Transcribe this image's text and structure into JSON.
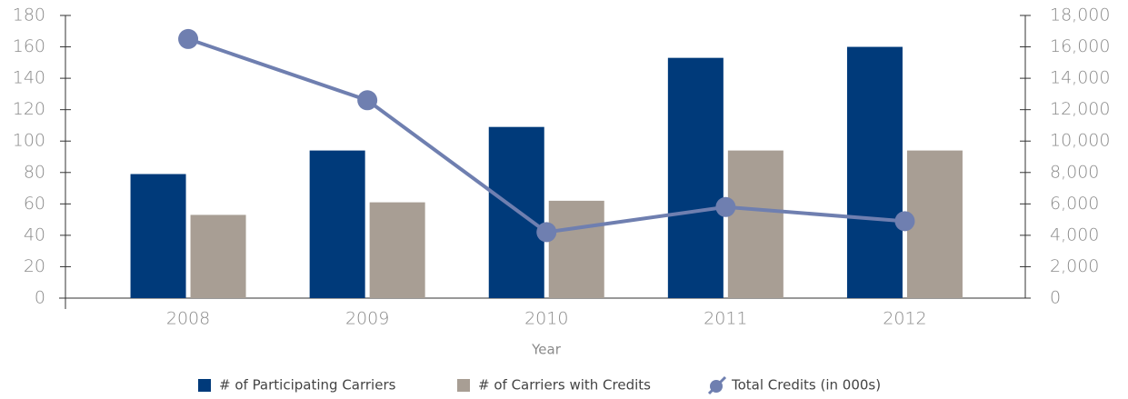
{
  "chart_data": {
    "type": "bar",
    "x_label": "Year",
    "categories": [
      "2008",
      "2009",
      "2010",
      "2011",
      "2012"
    ],
    "series": [
      {
        "name": "# of Participating Carriers",
        "color": "#003a7a",
        "type": "bar",
        "values": [
          79,
          94,
          109,
          153,
          160
        ]
      },
      {
        "name": "# of Carriers with Credits",
        "color": "#a89e94",
        "type": "bar",
        "values": [
          53,
          61,
          62,
          94,
          94
        ]
      },
      {
        "name": "Total Credits (in 000s)",
        "color": "#6f7fb0",
        "type": "line",
        "axis": "y2",
        "values": [
          16500,
          12600,
          4200,
          5800,
          4900
        ]
      }
    ],
    "ylim": [
      0,
      180
    ],
    "yticks": [
      0,
      20,
      40,
      60,
      80,
      100,
      120,
      140,
      160,
      180
    ],
    "y2lim": [
      0,
      18000
    ],
    "y2ticks": [
      0,
      {
        "value": 2000,
        "label": "2,000"
      },
      {
        "value": 4000,
        "label": "4,000"
      },
      {
        "value": 6000,
        "label": "6,000"
      },
      {
        "value": 8000,
        "label": "8,000"
      },
      {
        "value": 10000,
        "label": "10,000"
      },
      {
        "value": 12000,
        "label": "12,000"
      },
      {
        "value": 14000,
        "label": "14,000"
      },
      {
        "value": 16000,
        "label": "16,000"
      },
      {
        "value": 18000,
        "label": "18,000"
      }
    ],
    "grid": false,
    "legend": "bottom"
  }
}
